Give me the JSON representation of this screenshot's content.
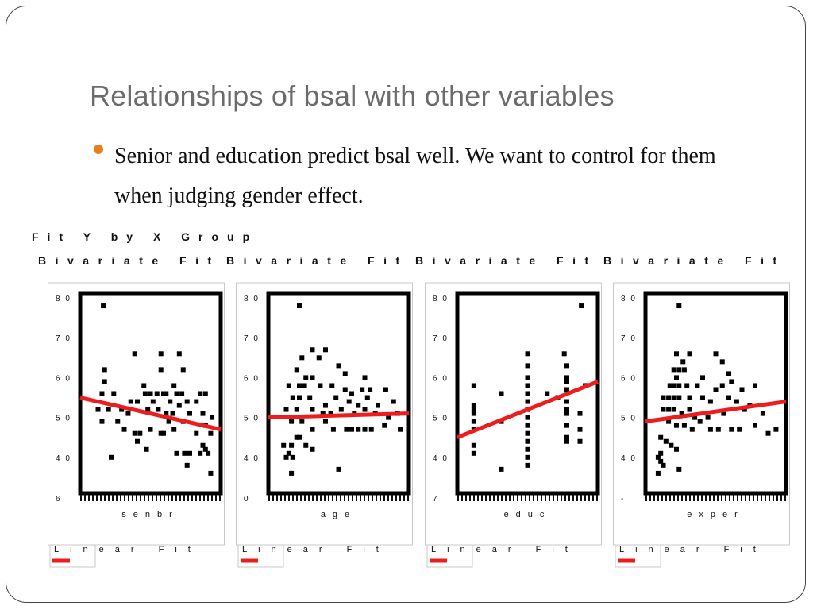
{
  "slide": {
    "title": "Relationships of bsal with other variables",
    "bullet": "Senior and education predict bsal well.  We want to control for them when judging gender effect."
  },
  "figure": {
    "header": "Fit Y by X Group"
  },
  "colors": {
    "fit_line": "#ee1c1c",
    "points": "#000000",
    "frame": "#000000",
    "bullet": "#e87d1c",
    "title_text": "#6b6b6b"
  },
  "chart_data": [
    {
      "type": "scatter",
      "title": "Bivariate Fit",
      "xlabel": "senbr",
      "ylabel": "",
      "ylim": [
        3.1,
        8.1
      ],
      "y_ticks": [
        "8 0",
        "7 0",
        "6 0",
        "5 0",
        "4 0",
        "6"
      ],
      "xlim": [
        0,
        100
      ],
      "legend": "Linear Fit",
      "fit_line": {
        "x": [
          0,
          100
        ],
        "y": [
          5.5,
          4.7
        ]
      },
      "series": [
        {
          "values": [
            [
              14,
              7.8
            ],
            [
              38,
              6.6
            ],
            [
              58,
              6.6
            ],
            [
              72,
              6.6
            ],
            [
              75,
              6.2
            ],
            [
              58,
              6.2
            ],
            [
              15,
              6.2
            ],
            [
              15,
              5.9
            ],
            [
              13,
              5.6
            ],
            [
              22,
              5.6
            ],
            [
              46,
              5.6
            ],
            [
              50,
              5.6
            ],
            [
              55,
              5.6
            ],
            [
              60,
              5.6
            ],
            [
              62,
              5.6
            ],
            [
              70,
              5.6
            ],
            [
              74,
              5.6
            ],
            [
              88,
              5.6
            ],
            [
              92,
              5.6
            ],
            [
              68,
              5.8
            ],
            [
              45,
              5.8
            ],
            [
              35,
              5.4
            ],
            [
              40,
              5.4
            ],
            [
              52,
              5.4
            ],
            [
              65,
              5.4
            ],
            [
              78,
              5.4
            ],
            [
              85,
              5.4
            ],
            [
              10,
              5.2
            ],
            [
              18,
              5.2
            ],
            [
              28,
              5.2
            ],
            [
              33,
              5.1
            ],
            [
              48,
              5.2
            ],
            [
              56,
              5.2
            ],
            [
              62,
              5.1
            ],
            [
              67,
              5.1
            ],
            [
              72,
              5.3
            ],
            [
              80,
              5.1
            ],
            [
              90,
              5.1
            ],
            [
              97,
              5.0
            ],
            [
              13,
              4.9
            ],
            [
              25,
              4.9
            ],
            [
              30,
              4.7
            ],
            [
              38,
              4.6
            ],
            [
              42,
              4.6
            ],
            [
              50,
              4.7
            ],
            [
              58,
              4.6
            ],
            [
              64,
              4.9
            ],
            [
              68,
              4.7
            ],
            [
              75,
              4.9
            ],
            [
              85,
              4.6
            ],
            [
              92,
              4.8
            ],
            [
              96,
              4.6
            ],
            [
              40,
              4.4
            ],
            [
              47,
              4.2
            ],
            [
              60,
              4.6
            ],
            [
              70,
              4.1
            ],
            [
              76,
              4.1
            ],
            [
              80,
              4.1
            ],
            [
              88,
              4.1
            ],
            [
              90,
              4.3
            ],
            [
              92,
              4.2
            ],
            [
              94,
              4.1
            ],
            [
              20,
              4.0
            ],
            [
              78,
              3.8
            ],
            [
              96,
              3.6
            ]
          ]
        }
      ]
    },
    {
      "type": "scatter",
      "title": "Bivariate Fit",
      "xlabel": "age",
      "ylabel": "",
      "ylim": [
        3.1,
        8.1
      ],
      "y_ticks": [
        "8 0",
        "7 0",
        "6 0",
        "5 0",
        "4 0",
        "0"
      ],
      "xlim": [
        0,
        100
      ],
      "legend": "Linear Fit",
      "fit_line": {
        "x": [
          0,
          100
        ],
        "y": [
          5.0,
          5.1
        ]
      },
      "series": [
        {
          "values": [
            [
              20,
              7.8
            ],
            [
              30,
              6.7
            ],
            [
              40,
              6.7
            ],
            [
              22,
              6.5
            ],
            [
              35,
              6.5
            ],
            [
              50,
              6.3
            ],
            [
              55,
              6.1
            ],
            [
              18,
              6.2
            ],
            [
              25,
              6.0
            ],
            [
              30,
              6.0
            ],
            [
              70,
              6.0
            ],
            [
              12,
              5.8
            ],
            [
              20,
              5.8
            ],
            [
              24,
              5.8
            ],
            [
              36,
              5.8
            ],
            [
              45,
              5.8
            ],
            [
              55,
              5.7
            ],
            [
              60,
              5.6
            ],
            [
              68,
              5.7
            ],
            [
              74,
              5.7
            ],
            [
              86,
              5.7
            ],
            [
              15,
              5.5
            ],
            [
              20,
              5.5
            ],
            [
              28,
              5.5
            ],
            [
              40,
              5.3
            ],
            [
              48,
              5.5
            ],
            [
              58,
              5.4
            ],
            [
              65,
              5.3
            ],
            [
              72,
              5.5
            ],
            [
              80,
              5.3
            ],
            [
              92,
              5.4
            ],
            [
              10,
              5.2
            ],
            [
              18,
              5.2
            ],
            [
              30,
              5.2
            ],
            [
              38,
              5.1
            ],
            [
              44,
              5.1
            ],
            [
              52,
              5.2
            ],
            [
              62,
              5.1
            ],
            [
              70,
              5.2
            ],
            [
              78,
              5.1
            ],
            [
              88,
              5.0
            ],
            [
              95,
              5.1
            ],
            [
              14,
              4.9
            ],
            [
              22,
              4.9
            ],
            [
              30,
              4.7
            ],
            [
              40,
              4.9
            ],
            [
              46,
              4.7
            ],
            [
              56,
              4.7
            ],
            [
              60,
              4.7
            ],
            [
              65,
              4.7
            ],
            [
              70,
              4.7
            ],
            [
              75,
              4.7
            ],
            [
              85,
              4.8
            ],
            [
              97,
              4.7
            ],
            [
              8,
              4.3
            ],
            [
              14,
              4.3
            ],
            [
              18,
              4.5
            ],
            [
              20,
              4.5
            ],
            [
              25,
              4.3
            ],
            [
              30,
              4.2
            ],
            [
              10,
              4.0
            ],
            [
              15,
              4.0
            ],
            [
              12,
              4.1
            ],
            [
              50,
              3.7
            ],
            [
              14,
              3.6
            ]
          ]
        }
      ]
    },
    {
      "type": "scatter",
      "title": "Bivariate Fit",
      "xlabel": "educ",
      "ylabel": "",
      "ylim": [
        3.1,
        8.1
      ],
      "y_ticks": [
        "8 0",
        "7 0",
        "6 0",
        "5 0",
        "4 0",
        "7"
      ],
      "xlim": [
        0,
        100
      ],
      "legend": "Linear Fit",
      "fit_line": {
        "x": [
          0,
          100
        ],
        "y": [
          4.5,
          5.9
        ]
      },
      "series": [
        {
          "values": [
            [
              9,
              5.8
            ],
            [
              9,
              5.3
            ],
            [
              9,
              5.2
            ],
            [
              9,
              5.1
            ],
            [
              9,
              4.9
            ],
            [
              9,
              4.7
            ],
            [
              9,
              4.3
            ],
            [
              9,
              4.1
            ],
            [
              30,
              3.7
            ],
            [
              50,
              6.6
            ],
            [
              50,
              6.3
            ],
            [
              50,
              6.0
            ],
            [
              50,
              5.8
            ],
            [
              50,
              5.6
            ],
            [
              50,
              5.4
            ],
            [
              50,
              5.2
            ],
            [
              50,
              5.0
            ],
            [
              50,
              4.8
            ],
            [
              50,
              4.6
            ],
            [
              50,
              4.4
            ],
            [
              50,
              4.2
            ],
            [
              50,
              4.0
            ],
            [
              50,
              3.8
            ],
            [
              65,
              5.6
            ],
            [
              78,
              6.6
            ],
            [
              80,
              5.9
            ],
            [
              80,
              5.4
            ],
            [
              80,
              5.1
            ],
            [
              80,
              4.8
            ],
            [
              80,
              4.5
            ],
            [
              80,
              4.4
            ],
            [
              80,
              6.3
            ],
            [
              80,
              6.0
            ],
            [
              80,
              5.7
            ],
            [
              80,
              5.2
            ],
            [
              90,
              5.1
            ],
            [
              94,
              5.8
            ],
            [
              91,
              7.8
            ],
            [
              90,
              4.7
            ],
            [
              90,
              4.4
            ],
            [
              73,
              5.5
            ],
            [
              30,
              5.6
            ],
            [
              30,
              4.9
            ]
          ]
        }
      ]
    },
    {
      "type": "scatter",
      "title": "Bivariate Fit",
      "xlabel": "exper",
      "ylabel": "",
      "ylim": [
        3.1,
        8.1
      ],
      "y_ticks": [
        "8 0",
        "7 0",
        "6 0",
        "5 0",
        "4 0",
        "-"
      ],
      "xlim": [
        0,
        100
      ],
      "legend": "Linear Fit",
      "fit_line": {
        "x": [
          0,
          100
        ],
        "y": [
          4.9,
          5.4
        ]
      },
      "series": [
        {
          "values": [
            [
              22,
              7.8
            ],
            [
              20,
              6.6
            ],
            [
              25,
              6.4
            ],
            [
              30,
              6.6
            ],
            [
              50,
              6.6
            ],
            [
              55,
              6.4
            ],
            [
              60,
              6.1
            ],
            [
              18,
              6.2
            ],
            [
              22,
              6.2
            ],
            [
              26,
              6.2
            ],
            [
              20,
              6.0
            ],
            [
              40,
              6.0
            ],
            [
              55,
              5.8
            ],
            [
              62,
              5.9
            ],
            [
              15,
              5.8
            ],
            [
              18,
              5.8
            ],
            [
              22,
              5.8
            ],
            [
              28,
              5.8
            ],
            [
              36,
              5.8
            ],
            [
              50,
              5.7
            ],
            [
              70,
              5.7
            ],
            [
              80,
              5.8
            ],
            [
              10,
              5.5
            ],
            [
              14,
              5.5
            ],
            [
              18,
              5.5
            ],
            [
              22,
              5.5
            ],
            [
              30,
              5.5
            ],
            [
              40,
              5.5
            ],
            [
              46,
              5.4
            ],
            [
              60,
              5.5
            ],
            [
              66,
              5.4
            ],
            [
              76,
              5.3
            ],
            [
              10,
              5.2
            ],
            [
              14,
              5.2
            ],
            [
              18,
              5.2
            ],
            [
              24,
              5.1
            ],
            [
              30,
              5.2
            ],
            [
              34,
              5.0
            ],
            [
              44,
              5.0
            ],
            [
              56,
              5.1
            ],
            [
              72,
              5.2
            ],
            [
              86,
              5.1
            ],
            [
              14,
              4.9
            ],
            [
              20,
              4.8
            ],
            [
              26,
              4.8
            ],
            [
              32,
              4.7
            ],
            [
              38,
              4.9
            ],
            [
              46,
              4.7
            ],
            [
              52,
              4.7
            ],
            [
              62,
              4.7
            ],
            [
              68,
              4.7
            ],
            [
              80,
              4.8
            ],
            [
              90,
              4.6
            ],
            [
              96,
              4.7
            ],
            [
              8,
              4.5
            ],
            [
              12,
              4.4
            ],
            [
              16,
              4.3
            ],
            [
              20,
              4.2
            ],
            [
              8,
              4.1
            ],
            [
              6,
              4.0
            ],
            [
              8,
              3.9
            ],
            [
              10,
              3.8
            ],
            [
              6,
              3.6
            ],
            [
              22,
              3.7
            ]
          ]
        }
      ]
    }
  ]
}
